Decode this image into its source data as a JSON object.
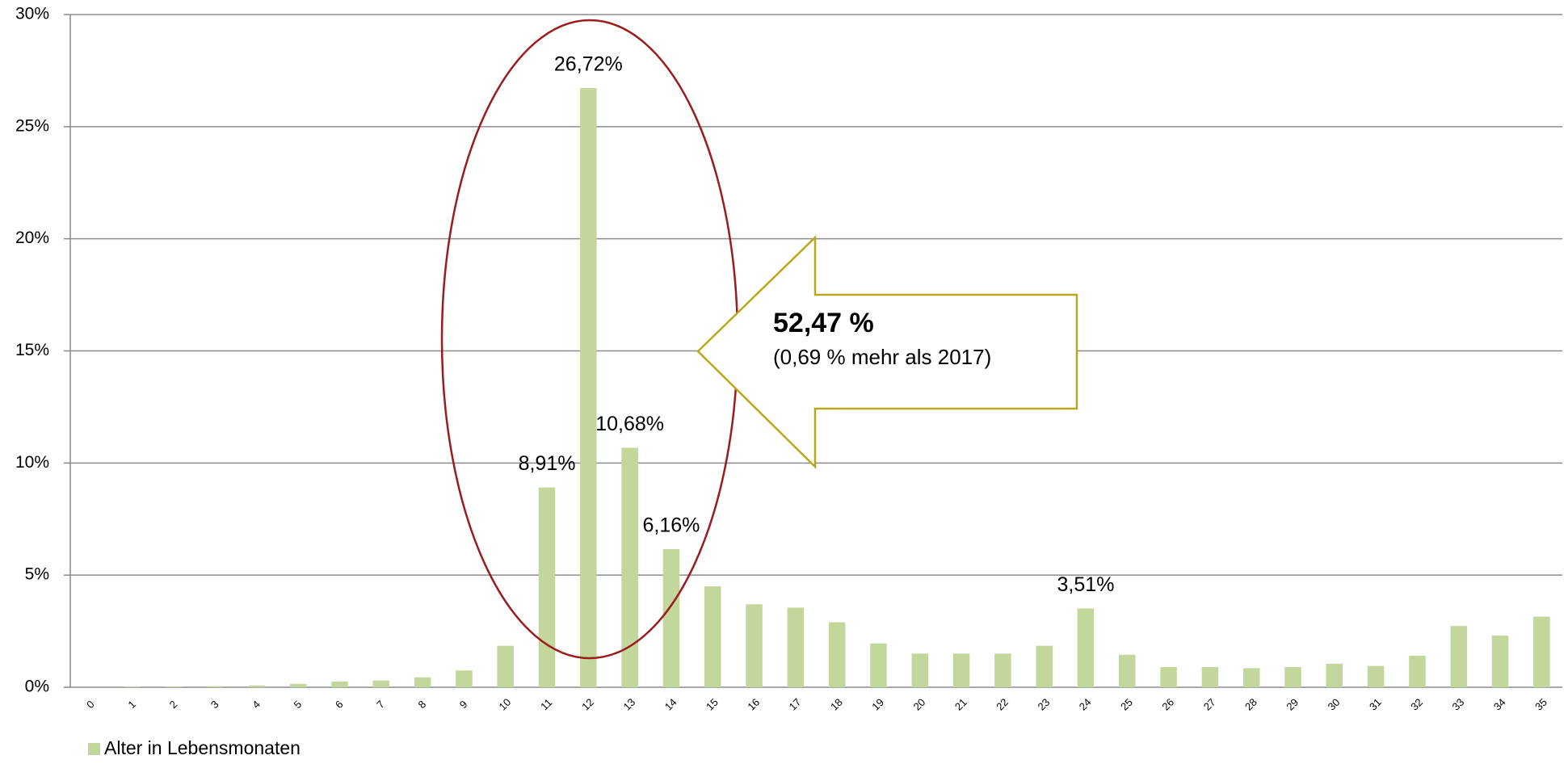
{
  "chart_data": {
    "type": "bar",
    "categories": [
      "0",
      "1",
      "2",
      "3",
      "4",
      "5",
      "6",
      "7",
      "8",
      "9",
      "10",
      "11",
      "12",
      "13",
      "14",
      "15",
      "16",
      "17",
      "18",
      "19",
      "20",
      "21",
      "22",
      "23",
      "24",
      "25",
      "26",
      "27",
      "28",
      "29",
      "30",
      "31",
      "32",
      "33",
      "34",
      "35"
    ],
    "series": [
      {
        "name": "Alter in Lebensmonaten",
        "color": "#c3d69b",
        "values": [
          0,
          0.02,
          0.03,
          0.05,
          0.08,
          0.15,
          0.26,
          0.3,
          0.44,
          0.75,
          1.85,
          8.91,
          26.72,
          10.68,
          6.16,
          4.5,
          3.7,
          3.55,
          2.9,
          1.95,
          1.5,
          1.5,
          1.5,
          1.85,
          3.51,
          1.45,
          0.9,
          0.9,
          0.85,
          0.9,
          1.05,
          0.95,
          1.4,
          2.73,
          2.3,
          3.15
        ],
        "value_labels": [
          null,
          null,
          null,
          null,
          null,
          null,
          null,
          null,
          null,
          null,
          null,
          "8,91%",
          "26,72%",
          "10,68%",
          "6,16%",
          null,
          null,
          null,
          null,
          null,
          null,
          null,
          null,
          null,
          "3,51%",
          null,
          null,
          null,
          null,
          null,
          null,
          null,
          null,
          null,
          null,
          null
        ]
      }
    ],
    "ylim": [
      0,
      30
    ],
    "yticks": [
      {
        "value": 0,
        "label": "0%"
      },
      {
        "value": 5,
        "label": "5%"
      },
      {
        "value": 10,
        "label": "10%"
      },
      {
        "value": 15,
        "label": "15%"
      },
      {
        "value": 20,
        "label": "20%"
      },
      {
        "value": 25,
        "label": "25%"
      },
      {
        "value": 30,
        "label": "30%"
      }
    ],
    "grid": true,
    "legend": "bottom-left",
    "annotations": [
      "52,47 %",
      "(0,69 % mehr als 2017)"
    ]
  }
}
